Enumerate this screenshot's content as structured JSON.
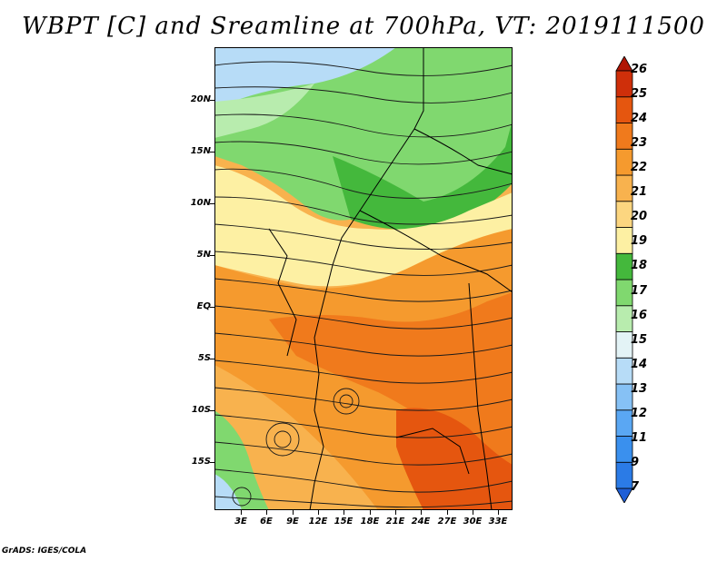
{
  "title": "WBPT [C] and Sreamline at 700hPa, VT: 2019111500",
  "credit": "GrADS: IGES/COLA",
  "map": {
    "lat_labels": [
      "20N",
      "15N",
      "10N",
      "5N",
      "EQ",
      "5S",
      "10S",
      "15S"
    ],
    "lon_labels": [
      "3E",
      "6E",
      "9E",
      "12E",
      "15E",
      "18E",
      "21E",
      "24E",
      "27E",
      "30E",
      "33E"
    ],
    "lon_range": [
      0,
      34
    ],
    "lat_range": [
      -20,
      24
    ],
    "field": "WBPT",
    "overlay": "streamlines"
  },
  "colorbar": {
    "labels": [
      "7",
      "9",
      "11",
      "12",
      "13",
      "14",
      "15",
      "16",
      "17",
      "18",
      "19",
      "20",
      "21",
      "22",
      "23",
      "24",
      "25",
      "26"
    ],
    "colors": [
      "#1f5fd6",
      "#2b7be6",
      "#3a90ee",
      "#5aa7f3",
      "#86c1f5",
      "#b7dcf7",
      "#e3f3f6",
      "#b8ecae",
      "#80d86f",
      "#44b83c",
      "#fdf0a3",
      "#fcd680",
      "#f8b24e",
      "#f59a2e",
      "#f07a1c",
      "#e5560f",
      "#cf2f0a",
      "#b01505"
    ]
  }
}
